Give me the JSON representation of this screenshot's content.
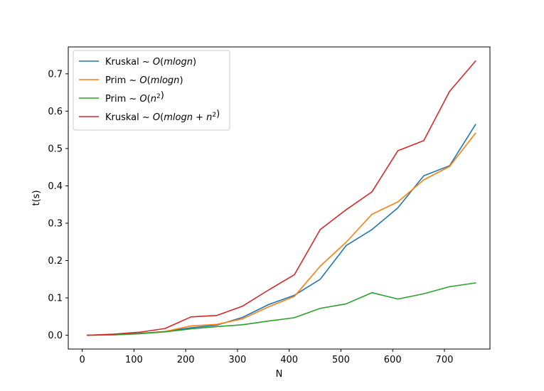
{
  "chart_data": {
    "type": "line",
    "title": "",
    "xlabel": "N",
    "ylabel": "t(s)",
    "xlim": [
      -27,
      788
    ],
    "ylim": [
      -0.037,
      0.772
    ],
    "xticks": [
      0,
      100,
      200,
      300,
      400,
      500,
      600,
      700
    ],
    "yticks": [
      0.0,
      0.1,
      0.2,
      0.3,
      0.4,
      0.5,
      0.6,
      0.7
    ],
    "ytick_labels": [
      "0.0",
      "0.1",
      "0.2",
      "0.3",
      "0.4",
      "0.5",
      "0.6",
      "0.7"
    ],
    "grid": false,
    "legend_position": "upper left",
    "x": [
      10,
      60,
      110,
      160,
      210,
      260,
      310,
      360,
      410,
      460,
      510,
      560,
      610,
      660,
      710,
      760
    ],
    "series": [
      {
        "name": "Kruskal ~ O(mlogn)",
        "legend_parts": [
          [
            "Kruskal ~ ",
            ""
          ],
          [
            "O",
            "it"
          ],
          [
            "(",
            ""
          ],
          [
            "mlogn",
            "it"
          ],
          [
            ")",
            ""
          ]
        ],
        "color": "#1f77b4",
        "values": [
          0.0,
          0.002,
          0.005,
          0.01,
          0.02,
          0.027,
          0.048,
          0.082,
          0.107,
          0.15,
          0.24,
          0.283,
          0.341,
          0.427,
          0.454,
          0.564
        ]
      },
      {
        "name": "Prim ~ O(mlogn)",
        "legend_parts": [
          [
            "Prim ~ ",
            ""
          ],
          [
            "O",
            "it"
          ],
          [
            "(",
            ""
          ],
          [
            "mlogn",
            "it"
          ],
          [
            ")",
            ""
          ]
        ],
        "color": "#ff7f0e",
        "values": [
          0.0,
          0.001,
          0.004,
          0.01,
          0.025,
          0.029,
          0.044,
          0.076,
          0.104,
          0.185,
          0.249,
          0.324,
          0.357,
          0.416,
          0.452,
          0.541
        ]
      },
      {
        "name": "Prim ~ O(n^2)",
        "legend_parts": [
          [
            "Prim ~ ",
            ""
          ],
          [
            "O",
            "it"
          ],
          [
            "(",
            ""
          ],
          [
            "n",
            "it"
          ],
          [
            "2",
            "sup"
          ],
          [
            ")",
            ""
          ]
        ],
        "color": "#2ca02c",
        "values": [
          0.0,
          0.001,
          0.004,
          0.009,
          0.017,
          0.023,
          0.028,
          0.038,
          0.047,
          0.072,
          0.084,
          0.114,
          0.097,
          0.111,
          0.13,
          0.14
        ]
      },
      {
        "name": "Kruskal ~ O(mlogn + n^2)",
        "legend_parts": [
          [
            "Kruskal ~ ",
            ""
          ],
          [
            "O",
            "it"
          ],
          [
            "(",
            ""
          ],
          [
            "mlogn",
            "it"
          ],
          [
            " + ",
            ""
          ],
          [
            "n",
            "it"
          ],
          [
            "2",
            "sup"
          ],
          [
            ")",
            ""
          ]
        ],
        "color": "#d62728",
        "values": [
          0.0,
          0.003,
          0.008,
          0.018,
          0.049,
          0.053,
          0.078,
          0.121,
          0.162,
          0.283,
          0.336,
          0.384,
          0.494,
          0.521,
          0.653,
          0.734
        ]
      }
    ]
  }
}
